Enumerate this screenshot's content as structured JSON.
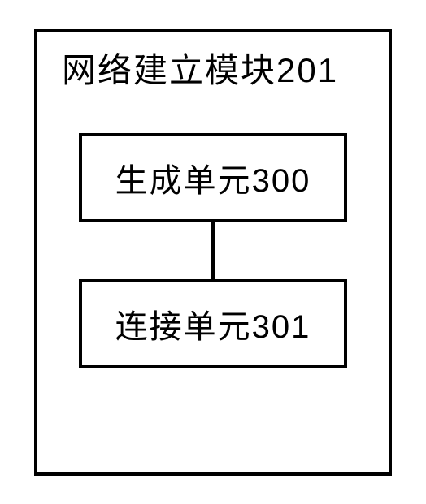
{
  "diagram": {
    "type": "flowchart",
    "outer_module": {
      "title_text": "网络建立模块201",
      "border_color": "#000000",
      "border_width": 4,
      "background_color": "#ffffff"
    },
    "nodes": [
      {
        "id": "node-generate",
        "label": "生成单元300",
        "border_color": "#000000",
        "border_width": 4,
        "background_color": "#ffffff",
        "text_color": "#000000",
        "font_size": 40
      },
      {
        "id": "node-connect",
        "label": "连接单元301",
        "border_color": "#000000",
        "border_width": 4,
        "background_color": "#ffffff",
        "text_color": "#000000",
        "font_size": 40
      }
    ],
    "edges": [
      {
        "from": "node-generate",
        "to": "node-connect",
        "color": "#000000",
        "width": 4
      }
    ],
    "title_font_size": 42,
    "title_color": "#000000",
    "canvas_background": "#ffffff"
  }
}
